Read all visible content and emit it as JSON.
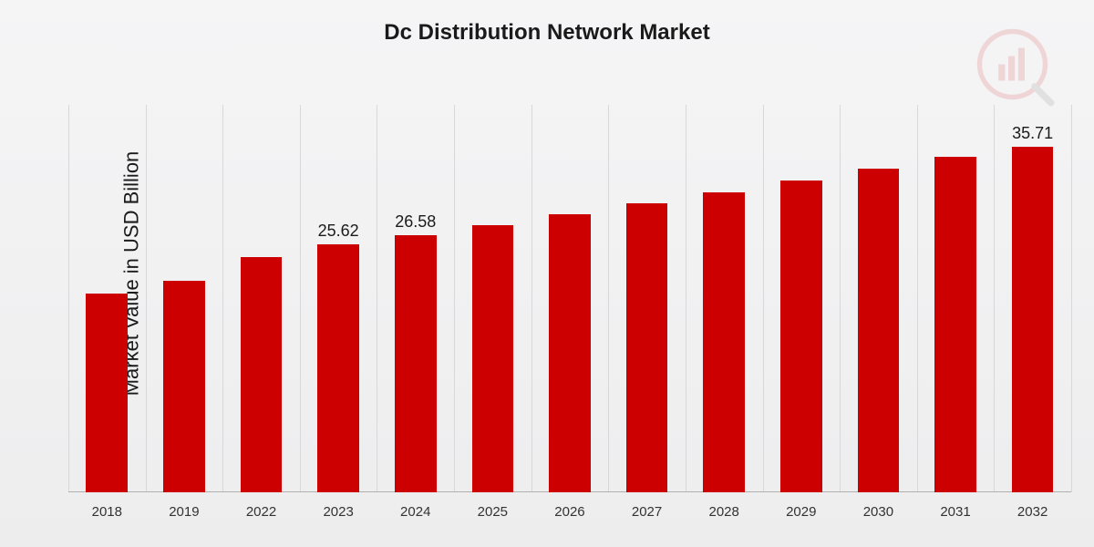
{
  "chart": {
    "type": "bar",
    "title": "Dc Distribution Network Market",
    "title_fontsize": 24,
    "title_color": "#1a1a1a",
    "ylabel": "Market Value in USD Billion",
    "ylabel_fontsize": 22,
    "ylabel_color": "#1a1a1a",
    "background_gradient_top": "#f5f5f6",
    "background_gradient_bottom": "#ededee",
    "grid_color": "#d8d8d8",
    "axis_line_color": "#b0b0b0",
    "bar_color": "#cc0000",
    "bar_width_pct": 54,
    "value_label_fontsize": 18,
    "value_label_color": "#1a1a1a",
    "x_label_fontsize": 15,
    "x_label_color": "#333333",
    "ylim": [
      0,
      40
    ],
    "categories": [
      "2018",
      "2019",
      "2022",
      "2023",
      "2024",
      "2025",
      "2026",
      "2027",
      "2028",
      "2029",
      "2030",
      "2031",
      "2032"
    ],
    "values": [
      20.5,
      21.8,
      24.3,
      25.62,
      26.58,
      27.6,
      28.7,
      29.8,
      31.0,
      32.2,
      33.4,
      34.6,
      35.71
    ],
    "visible_value_labels": {
      "3": "25.62",
      "4": "26.58",
      "12": "35.71"
    },
    "watermark": {
      "circle_color": "#cc0000",
      "bar_color": "#cc0000",
      "magnifier_color": "#555555",
      "opacity": 0.12
    }
  }
}
